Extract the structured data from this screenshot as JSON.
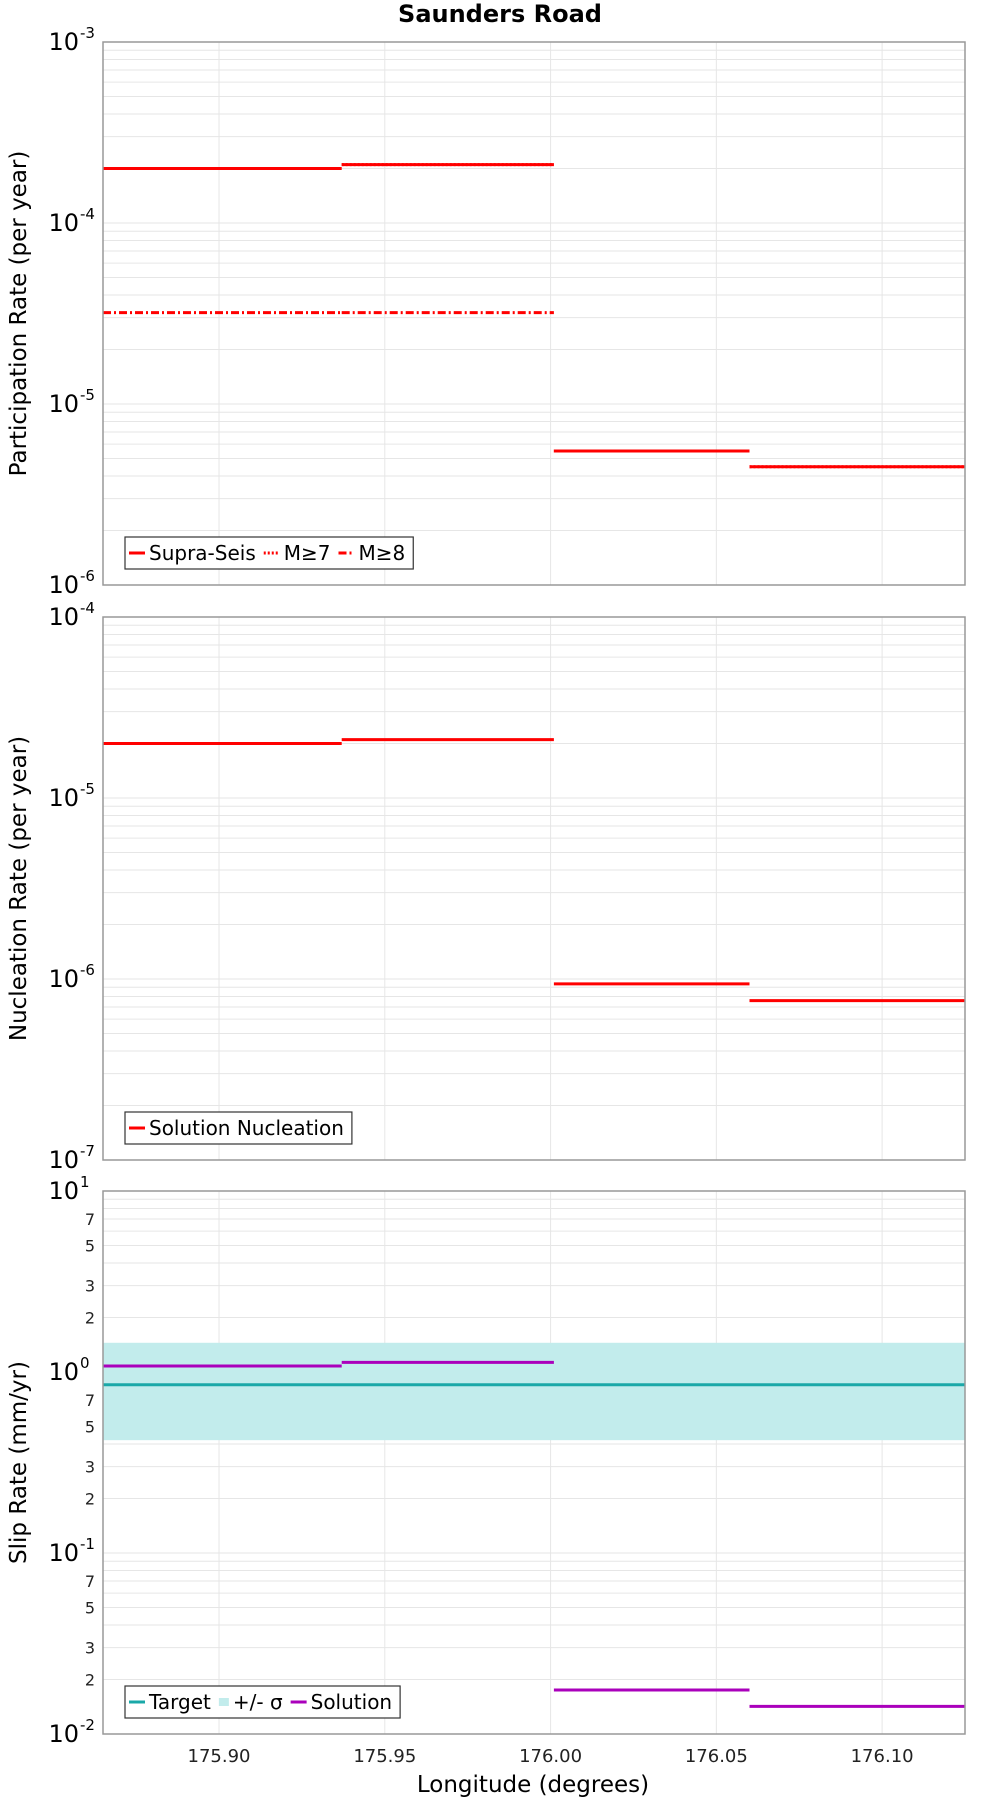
{
  "title": "Saunders Road",
  "x_axis_label": "Longitude (degrees)",
  "chart_data": [
    {
      "type": "line",
      "ylabel": "Participation Rate (per year)",
      "yscale": "log",
      "ylim": [
        1e-06,
        0.001
      ],
      "xlim": [
        175.865,
        176.125
      ],
      "xticks": [
        "175.90",
        "175.95",
        "176.00",
        "176.05",
        "176.10"
      ],
      "major_tick_labels": [
        {
          "value": 0.001,
          "base": "10",
          "exp": "-3"
        },
        {
          "value": 0.0001,
          "base": "10",
          "exp": "-4"
        },
        {
          "value": 1e-05,
          "base": "10",
          "exp": "-5"
        },
        {
          "value": 1e-06,
          "base": "10",
          "exp": "-6"
        }
      ],
      "minor_tick_labels": [],
      "legend_position": "bottom-left",
      "legend": [
        {
          "label": "Supra-Seis",
          "style": "solid",
          "color": "#ff0000"
        },
        {
          "label": "M≥7",
          "style": "dotted",
          "color": "#ff0000"
        },
        {
          "label": "M≥8",
          "style": "dashdot",
          "color": "#ff0000"
        }
      ],
      "series": [
        {
          "name": "Supra-Seis",
          "style": "solid",
          "color": "#ff0000",
          "segments": [
            {
              "x0": 175.865,
              "x1": 175.937,
              "y": 0.0002
            },
            {
              "x0": 175.937,
              "x1": 176.001,
              "y": 0.00021
            },
            {
              "x0": 176.001,
              "x1": 176.06,
              "y": 5.5e-06
            },
            {
              "x0": 176.06,
              "x1": 176.125,
              "y": 4.5e-06
            }
          ]
        },
        {
          "name": "M≥7",
          "style": "dotted",
          "color": "#ff0000",
          "segments": [
            {
              "x0": 175.865,
              "x1": 175.937,
              "y": 0.0002
            },
            {
              "x0": 175.937,
              "x1": 176.001,
              "y": 0.00021
            },
            {
              "x0": 176.001,
              "x1": 176.06,
              "y": 5.5e-06
            },
            {
              "x0": 176.06,
              "x1": 176.125,
              "y": 4.5e-06
            }
          ]
        },
        {
          "name": "M≥8",
          "style": "dashdot",
          "color": "#ff0000",
          "segments": [
            {
              "x0": 175.865,
              "x1": 175.937,
              "y": 3.2e-05
            },
            {
              "x0": 175.937,
              "x1": 176.001,
              "y": 3.2e-05
            }
          ]
        }
      ]
    },
    {
      "type": "line",
      "ylabel": "Nucleation Rate (per year)",
      "yscale": "log",
      "ylim": [
        1e-07,
        0.0001
      ],
      "xlim": [
        175.865,
        176.125
      ],
      "xticks": [
        "175.90",
        "175.95",
        "176.00",
        "176.05",
        "176.10"
      ],
      "major_tick_labels": [
        {
          "value": 0.0001,
          "base": "10",
          "exp": "-4"
        },
        {
          "value": 1e-05,
          "base": "10",
          "exp": "-5"
        },
        {
          "value": 1e-06,
          "base": "10",
          "exp": "-6"
        },
        {
          "value": 1e-07,
          "base": "10",
          "exp": "-7"
        }
      ],
      "minor_tick_labels": [],
      "legend_position": "bottom-left",
      "legend": [
        {
          "label": "Solution Nucleation",
          "style": "solid",
          "color": "#ff0000"
        }
      ],
      "series": [
        {
          "name": "Solution Nucleation",
          "style": "solid",
          "color": "#ff0000",
          "segments": [
            {
              "x0": 175.865,
              "x1": 175.937,
              "y": 2e-05
            },
            {
              "x0": 175.937,
              "x1": 176.001,
              "y": 2.1e-05
            },
            {
              "x0": 176.001,
              "x1": 176.06,
              "y": 9.4e-07
            },
            {
              "x0": 176.06,
              "x1": 176.125,
              "y": 7.6e-07
            }
          ]
        }
      ]
    },
    {
      "type": "line",
      "ylabel": "Slip Rate (mm/yr)",
      "yscale": "log",
      "ylim": [
        0.01,
        10
      ],
      "xlim": [
        175.865,
        176.125
      ],
      "xticks": [
        "175.90",
        "175.95",
        "176.00",
        "176.05",
        "176.10"
      ],
      "major_tick_labels": [
        {
          "value": 10,
          "base": "10",
          "exp": "1"
        },
        {
          "value": 1,
          "base": "10",
          "exp": "0"
        },
        {
          "value": 0.1,
          "base": "10",
          "exp": "-1"
        },
        {
          "value": 0.01,
          "base": "10",
          "exp": "-2"
        }
      ],
      "minor_tick_labels": [
        {
          "value": 7,
          "label": "7"
        },
        {
          "value": 5,
          "label": "5"
        },
        {
          "value": 3,
          "label": "3"
        },
        {
          "value": 2,
          "label": "2"
        },
        {
          "value": 0.7,
          "label": "7"
        },
        {
          "value": 0.5,
          "label": "5"
        },
        {
          "value": 0.3,
          "label": "3"
        },
        {
          "value": 0.2,
          "label": "2"
        },
        {
          "value": 0.07,
          "label": "7"
        },
        {
          "value": 0.05,
          "label": "5"
        },
        {
          "value": 0.03,
          "label": "3"
        },
        {
          "value": 0.02,
          "label": "2"
        }
      ],
      "legend_position": "bottom-left",
      "legend": [
        {
          "label": "Target",
          "style": "solid",
          "color": "#1aa8a8"
        },
        {
          "label": "+/- σ",
          "style": "band",
          "color": "#c2ecec"
        },
        {
          "label": "Solution",
          "style": "solid",
          "color": "#aa00bb"
        }
      ],
      "bands": [
        {
          "name": "+/- σ",
          "color": "#c2ecec",
          "x0": 175.865,
          "x1": 176.125,
          "y0": 0.42,
          "y1": 1.45
        }
      ],
      "series": [
        {
          "name": "Target",
          "style": "solid",
          "color": "#1aa8a8",
          "segments": [
            {
              "x0": 175.865,
              "x1": 176.125,
              "y": 0.85
            }
          ]
        },
        {
          "name": "Solution",
          "style": "solid",
          "color": "#aa00bb",
          "segments": [
            {
              "x0": 175.865,
              "x1": 175.937,
              "y": 1.08
            },
            {
              "x0": 175.937,
              "x1": 176.001,
              "y": 1.13
            },
            {
              "x0": 176.001,
              "x1": 176.06,
              "y": 0.0175
            },
            {
              "x0": 176.06,
              "x1": 176.125,
              "y": 0.0142
            }
          ]
        }
      ]
    }
  ]
}
